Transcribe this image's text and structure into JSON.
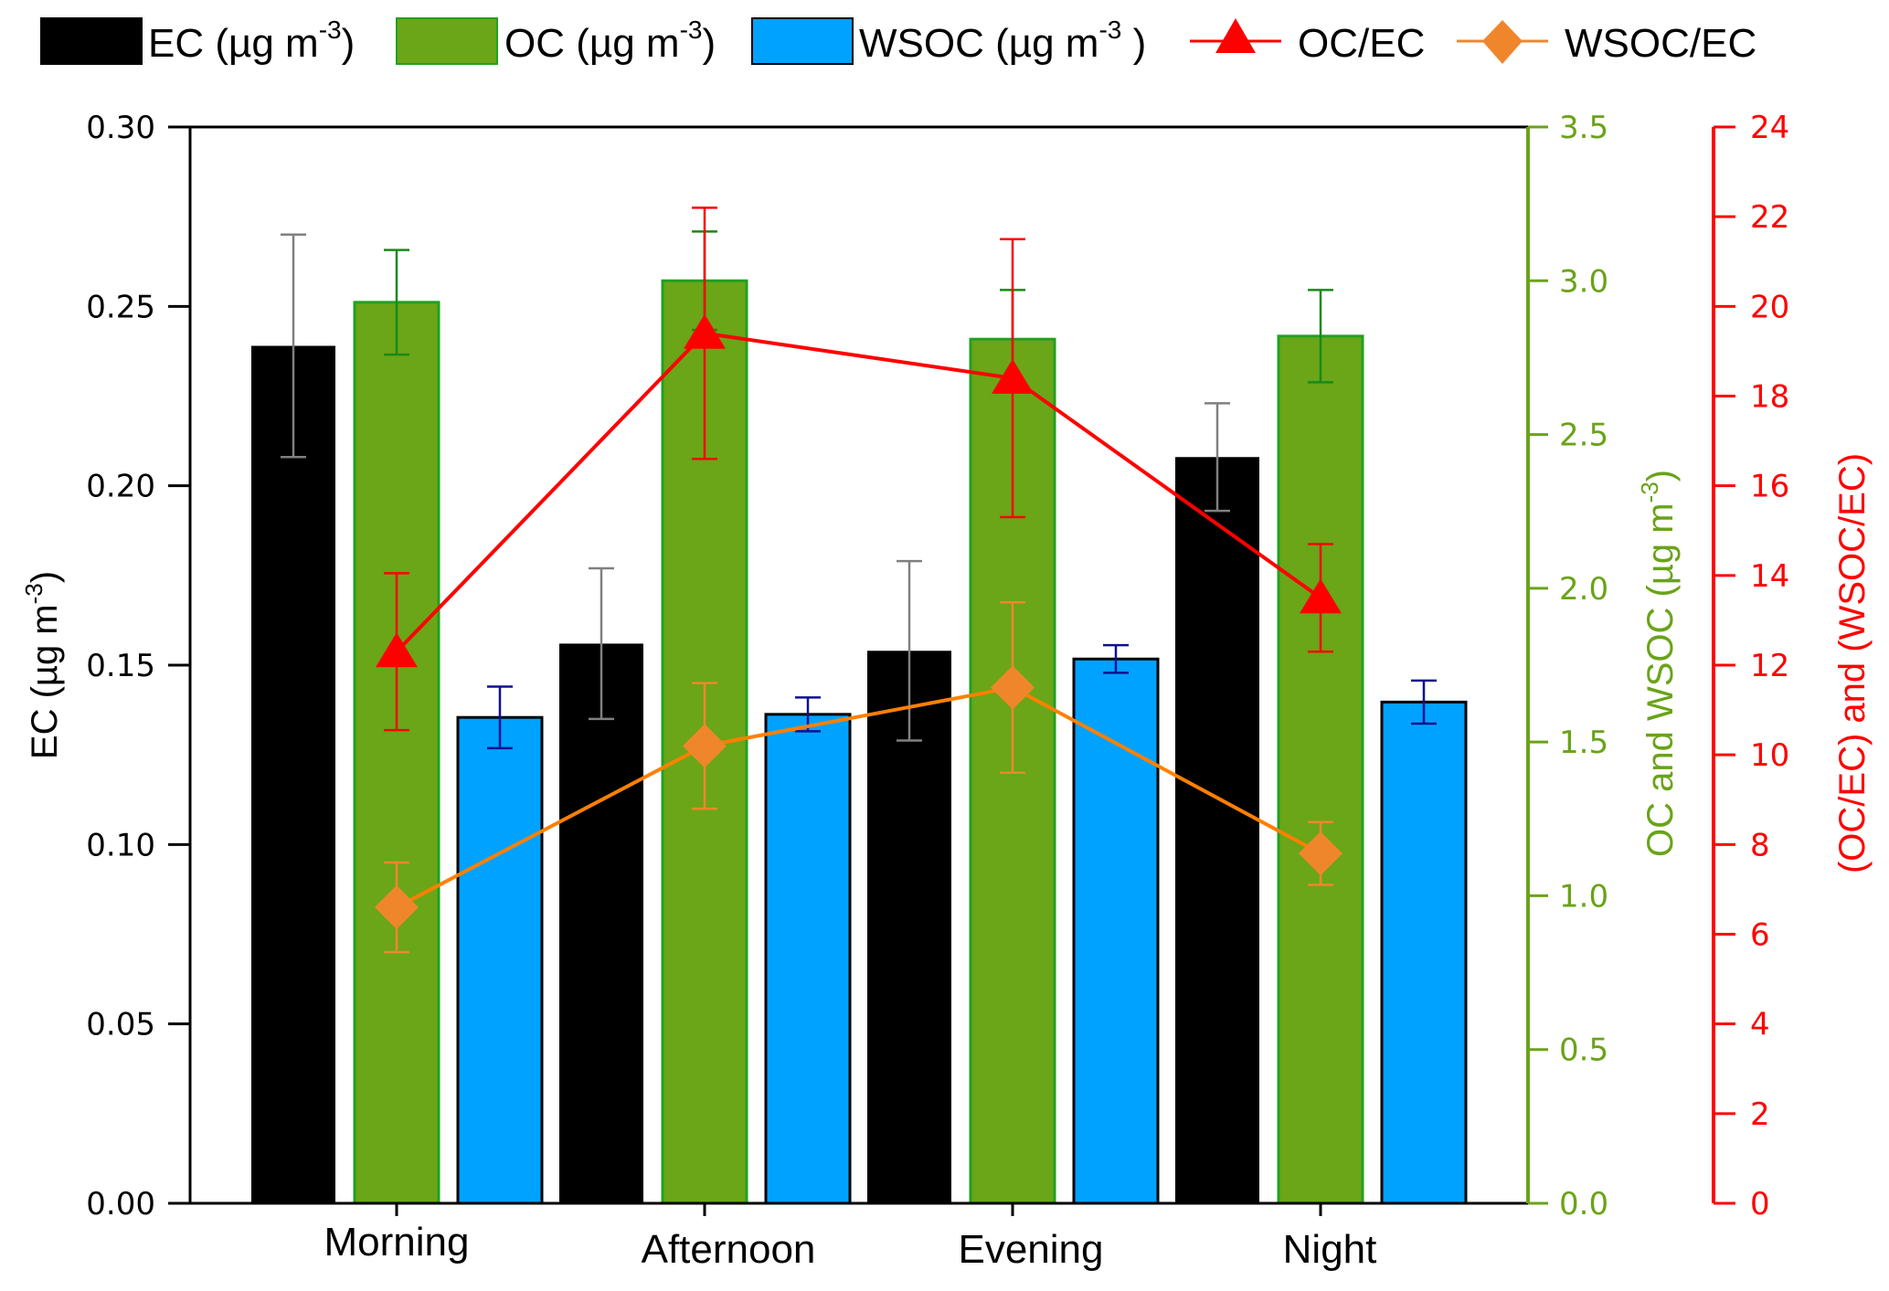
{
  "chart_data": {
    "type": "bar",
    "title": "",
    "categories": [
      "Morning",
      "Afternoon",
      "Evening",
      "Night"
    ],
    "xlabel": "",
    "axes": {
      "left": {
        "label": "EC (µg m",
        "label_sup": "-3",
        "label_end": ")",
        "range": [
          0,
          0.3
        ],
        "ticks": [
          "0.00",
          "0.05",
          "0.10",
          "0.15",
          "0.20",
          "0.25",
          "0.30"
        ],
        "color": "#000000"
      },
      "right1": {
        "label": "OC and WSOC (µg m",
        "label_sup": "-3",
        "label_end": ")",
        "range": [
          0,
          3.5
        ],
        "ticks": [
          "0.0",
          "0.5",
          "1.0",
          "1.5",
          "2.0",
          "2.5",
          "3.0",
          "3.5"
        ],
        "color": "#6aa318"
      },
      "right2": {
        "label": "(OC/EC) and (WSOC/EC)",
        "range": [
          0,
          24
        ],
        "ticks": [
          "0",
          "2",
          "4",
          "6",
          "8",
          "10",
          "12",
          "14",
          "16",
          "18",
          "20",
          "22",
          "24"
        ],
        "color": "#ff0000"
      }
    },
    "series": [
      {
        "name": "EC (µg m-3)",
        "kind": "bar",
        "axis": "left",
        "color": "#000000",
        "err_color": "#808080",
        "values": [
          0.239,
          0.156,
          0.154,
          0.208
        ],
        "errors": [
          0.031,
          0.021,
          0.025,
          0.015
        ]
      },
      {
        "name": "OC (µg m-3)",
        "kind": "bar",
        "axis": "right1",
        "color": "#6aa617",
        "border": "#22a022",
        "err_color": "#178a17",
        "values": [
          2.93,
          3.0,
          2.81,
          2.82
        ],
        "errors": [
          0.17,
          0.16,
          0.16,
          0.15
        ]
      },
      {
        "name": "WSOC (µg m-3)",
        "kind": "bar",
        "axis": "right1",
        "color": "#00a2ff",
        "border": "#000000",
        "err_color": "#101090",
        "values": [
          1.58,
          1.59,
          1.77,
          1.63
        ],
        "errors": [
          0.1,
          0.055,
          0.045,
          0.07
        ]
      },
      {
        "name": "OC/EC",
        "kind": "line",
        "marker": "triangle",
        "axis": "right2",
        "color": "#ff0000",
        "values": [
          12.3,
          19.4,
          18.4,
          13.5
        ],
        "errors": [
          1.75,
          2.8,
          3.1,
          1.2
        ]
      },
      {
        "name": "WSOC/EC",
        "kind": "line",
        "marker": "diamond",
        "axis": "right2",
        "color": "#f0862c",
        "line_color": "#ff8000",
        "values": [
          6.6,
          10.2,
          11.5,
          7.8
        ],
        "errors": [
          1.0,
          1.4,
          1.9,
          0.7
        ]
      }
    ],
    "legend": {
      "position": "top",
      "entries": [
        {
          "label": "EC (µg m",
          "sup": "-3",
          "end": ")"
        },
        {
          "label": "OC (µg m",
          "sup": "-3",
          "end": ")"
        },
        {
          "label": "WSOC (µg m",
          "sup": "-3",
          "end": " )"
        },
        {
          "label": "OC/EC"
        },
        {
          "label": "WSOC/EC"
        }
      ]
    },
    "grid": false
  }
}
